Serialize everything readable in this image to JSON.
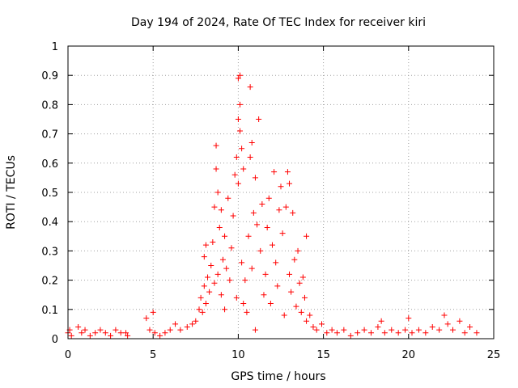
{
  "chart_data": {
    "type": "scatter",
    "title": "Day 194 of 2024, Rate Of TEC Index for receiver kiri",
    "xlabel": "GPS time / hours",
    "ylabel": "ROTI / TECUs",
    "xlim": [
      0,
      25
    ],
    "ylim": [
      0,
      1
    ],
    "xticks": [
      0,
      5,
      10,
      15,
      20,
      25
    ],
    "xtick_labels": [
      "0",
      "5",
      "10",
      "15",
      "20",
      "25"
    ],
    "yticks": [
      0,
      0.1,
      0.2,
      0.3,
      0.4,
      0.5,
      0.6,
      0.7,
      0.8,
      0.9,
      1
    ],
    "ytick_labels": [
      "0",
      "0.1",
      "0.2",
      "0.3",
      "0.4",
      "0.5",
      "0.6",
      "0.7",
      "0.8",
      "0.9",
      "1"
    ],
    "grid": true,
    "marker": "plus",
    "color": "#ff0000",
    "series": [
      {
        "name": "ROTI",
        "points": [
          [
            0.0,
            0.02
          ],
          [
            0.1,
            0.03
          ],
          [
            0.2,
            0.01
          ],
          [
            0.6,
            0.04
          ],
          [
            0.8,
            0.02
          ],
          [
            1.0,
            0.03
          ],
          [
            1.3,
            0.01
          ],
          [
            1.6,
            0.02
          ],
          [
            1.9,
            0.03
          ],
          [
            2.2,
            0.02
          ],
          [
            2.5,
            0.01
          ],
          [
            2.8,
            0.03
          ],
          [
            3.1,
            0.02
          ],
          [
            3.4,
            0.02
          ],
          [
            3.5,
            0.01
          ],
          [
            4.6,
            0.07
          ],
          [
            4.8,
            0.03
          ],
          [
            5.0,
            0.09
          ],
          [
            5.1,
            0.02
          ],
          [
            5.4,
            0.01
          ],
          [
            5.7,
            0.02
          ],
          [
            6.0,
            0.03
          ],
          [
            6.3,
            0.05
          ],
          [
            6.6,
            0.03
          ],
          [
            7.0,
            0.04
          ],
          [
            7.3,
            0.05
          ],
          [
            7.5,
            0.06
          ],
          [
            7.7,
            0.1
          ],
          [
            7.8,
            0.14
          ],
          [
            7.9,
            0.09
          ],
          [
            8.0,
            0.18
          ],
          [
            8.0,
            0.28
          ],
          [
            8.1,
            0.32
          ],
          [
            8.1,
            0.12
          ],
          [
            8.2,
            0.21
          ],
          [
            8.3,
            0.16
          ],
          [
            8.4,
            0.25
          ],
          [
            8.5,
            0.33
          ],
          [
            8.6,
            0.45
          ],
          [
            8.6,
            0.19
          ],
          [
            8.7,
            0.58
          ],
          [
            8.7,
            0.66
          ],
          [
            8.8,
            0.22
          ],
          [
            8.8,
            0.5
          ],
          [
            8.9,
            0.38
          ],
          [
            9.0,
            0.44
          ],
          [
            9.0,
            0.15
          ],
          [
            9.1,
            0.27
          ],
          [
            9.2,
            0.35
          ],
          [
            9.2,
            0.1
          ],
          [
            9.3,
            0.24
          ],
          [
            9.4,
            0.48
          ],
          [
            9.5,
            0.2
          ],
          [
            9.6,
            0.31
          ],
          [
            9.7,
            0.42
          ],
          [
            9.8,
            0.56
          ],
          [
            9.9,
            0.62
          ],
          [
            9.9,
            0.14
          ],
          [
            10.0,
            0.75
          ],
          [
            10.0,
            0.53
          ],
          [
            10.0,
            0.89
          ],
          [
            10.1,
            0.9
          ],
          [
            10.1,
            0.8
          ],
          [
            10.1,
            0.71
          ],
          [
            10.2,
            0.65
          ],
          [
            10.2,
            0.26
          ],
          [
            10.3,
            0.12
          ],
          [
            10.3,
            0.58
          ],
          [
            10.4,
            0.2
          ],
          [
            10.5,
            0.09
          ],
          [
            10.6,
            0.35
          ],
          [
            10.7,
            0.62
          ],
          [
            10.7,
            0.86
          ],
          [
            10.8,
            0.67
          ],
          [
            10.8,
            0.24
          ],
          [
            10.9,
            0.43
          ],
          [
            11.0,
            0.55
          ],
          [
            11.0,
            0.03
          ],
          [
            11.1,
            0.39
          ],
          [
            11.2,
            0.75
          ],
          [
            11.3,
            0.3
          ],
          [
            11.4,
            0.46
          ],
          [
            11.5,
            0.15
          ],
          [
            11.6,
            0.22
          ],
          [
            11.7,
            0.38
          ],
          [
            11.8,
            0.48
          ],
          [
            11.9,
            0.12
          ],
          [
            12.0,
            0.32
          ],
          [
            12.1,
            0.57
          ],
          [
            12.2,
            0.26
          ],
          [
            12.3,
            0.18
          ],
          [
            12.4,
            0.44
          ],
          [
            12.5,
            0.52
          ],
          [
            12.6,
            0.36
          ],
          [
            12.7,
            0.08
          ],
          [
            12.8,
            0.45
          ],
          [
            12.9,
            0.57
          ],
          [
            13.0,
            0.53
          ],
          [
            13.0,
            0.22
          ],
          [
            13.1,
            0.16
          ],
          [
            13.2,
            0.43
          ],
          [
            13.3,
            0.27
          ],
          [
            13.4,
            0.11
          ],
          [
            13.5,
            0.3
          ],
          [
            13.6,
            0.19
          ],
          [
            13.7,
            0.09
          ],
          [
            13.8,
            0.21
          ],
          [
            13.9,
            0.14
          ],
          [
            14.0,
            0.35
          ],
          [
            14.0,
            0.06
          ],
          [
            14.2,
            0.08
          ],
          [
            14.4,
            0.04
          ],
          [
            14.6,
            0.03
          ],
          [
            14.9,
            0.05
          ],
          [
            15.2,
            0.02
          ],
          [
            15.5,
            0.03
          ],
          [
            15.8,
            0.02
          ],
          [
            16.2,
            0.03
          ],
          [
            16.6,
            0.01
          ],
          [
            17.0,
            0.02
          ],
          [
            17.4,
            0.03
          ],
          [
            17.8,
            0.02
          ],
          [
            18.2,
            0.04
          ],
          [
            18.4,
            0.06
          ],
          [
            18.6,
            0.02
          ],
          [
            19.0,
            0.03
          ],
          [
            19.4,
            0.02
          ],
          [
            19.8,
            0.03
          ],
          [
            20.0,
            0.07
          ],
          [
            20.2,
            0.02
          ],
          [
            20.6,
            0.03
          ],
          [
            21.0,
            0.02
          ],
          [
            21.4,
            0.04
          ],
          [
            21.8,
            0.03
          ],
          [
            22.1,
            0.08
          ],
          [
            22.3,
            0.05
          ],
          [
            22.6,
            0.03
          ],
          [
            23.0,
            0.06
          ],
          [
            23.3,
            0.02
          ],
          [
            23.6,
            0.04
          ],
          [
            24.0,
            0.02
          ]
        ]
      }
    ]
  }
}
